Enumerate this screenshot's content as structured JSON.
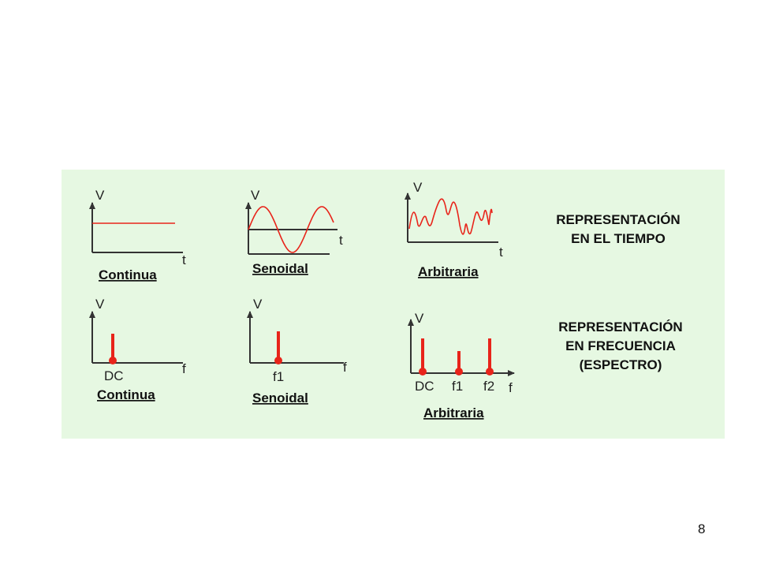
{
  "colors": {
    "panel_background": "#e6f8e2",
    "signal": "#e8241a",
    "axis": "#333333"
  },
  "axis_labels": {
    "voltage": "V",
    "time": "t",
    "frequency": "f"
  },
  "time_domain": {
    "title_line1": "REPRESENTACIÓN",
    "title_line2": "EN EL TIEMPO",
    "continua_caption": "Continua",
    "senoidal_caption": "Senoidal",
    "arbitraria_caption": "Arbitraria"
  },
  "frequency_domain": {
    "title_line1": "REPRESENTACIÓN",
    "title_line2": "EN FRECUENCIA",
    "title_line3": "(ESPECTRO)",
    "continua_caption": "Continua",
    "senoidal_caption": "Senoidal",
    "arbitraria_caption": "Arbitraria",
    "dc_label": "DC",
    "f1_label": "f1",
    "f2_label": "f2"
  },
  "page_number": "8"
}
